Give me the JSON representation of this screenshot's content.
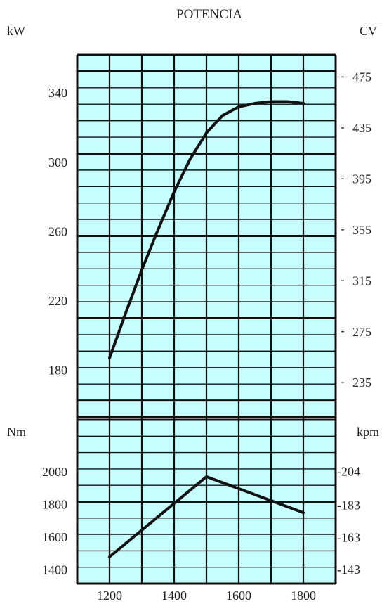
{
  "chart_data": [
    {
      "type": "line",
      "title": "POTENCIA",
      "ylabel_left": "kW",
      "ylabel_right": "CV",
      "ylim": [
        153,
        362
      ],
      "yticks_left": [
        180,
        220,
        260,
        300,
        340
      ],
      "yticks_right": [
        235,
        275,
        315,
        355,
        395,
        435,
        475
      ],
      "grid": true,
      "series": [
        {
          "x": [
            1200,
            1250,
            1300,
            1350,
            1400,
            1450,
            1500,
            1550,
            1600,
            1650,
            1700,
            1750,
            1800
          ],
          "y": [
            187,
            213,
            238,
            261,
            283,
            302,
            317,
            327,
            332,
            334,
            335,
            335,
            334
          ]
        }
      ]
    },
    {
      "type": "line",
      "ylabel_left": "Nm",
      "ylabel_right": "kpm",
      "ylim": [
        1317,
        2317
      ],
      "yticks_left": [
        1400,
        1600,
        1800,
        2000
      ],
      "yticks_right": [
        "143",
        "163",
        "183",
        "204"
      ],
      "grid": true,
      "series": [
        {
          "x": [
            1200,
            1500,
            1800
          ],
          "y": [
            1480,
            1970,
            1750
          ]
        }
      ]
    }
  ],
  "x_axis": {
    "xlim": [
      1100,
      1900
    ],
    "ticks": [
      1200,
      1400,
      1600,
      1800
    ]
  },
  "colors": {
    "background": "#c7ffff",
    "grid": "#111111",
    "line": "#111111"
  }
}
